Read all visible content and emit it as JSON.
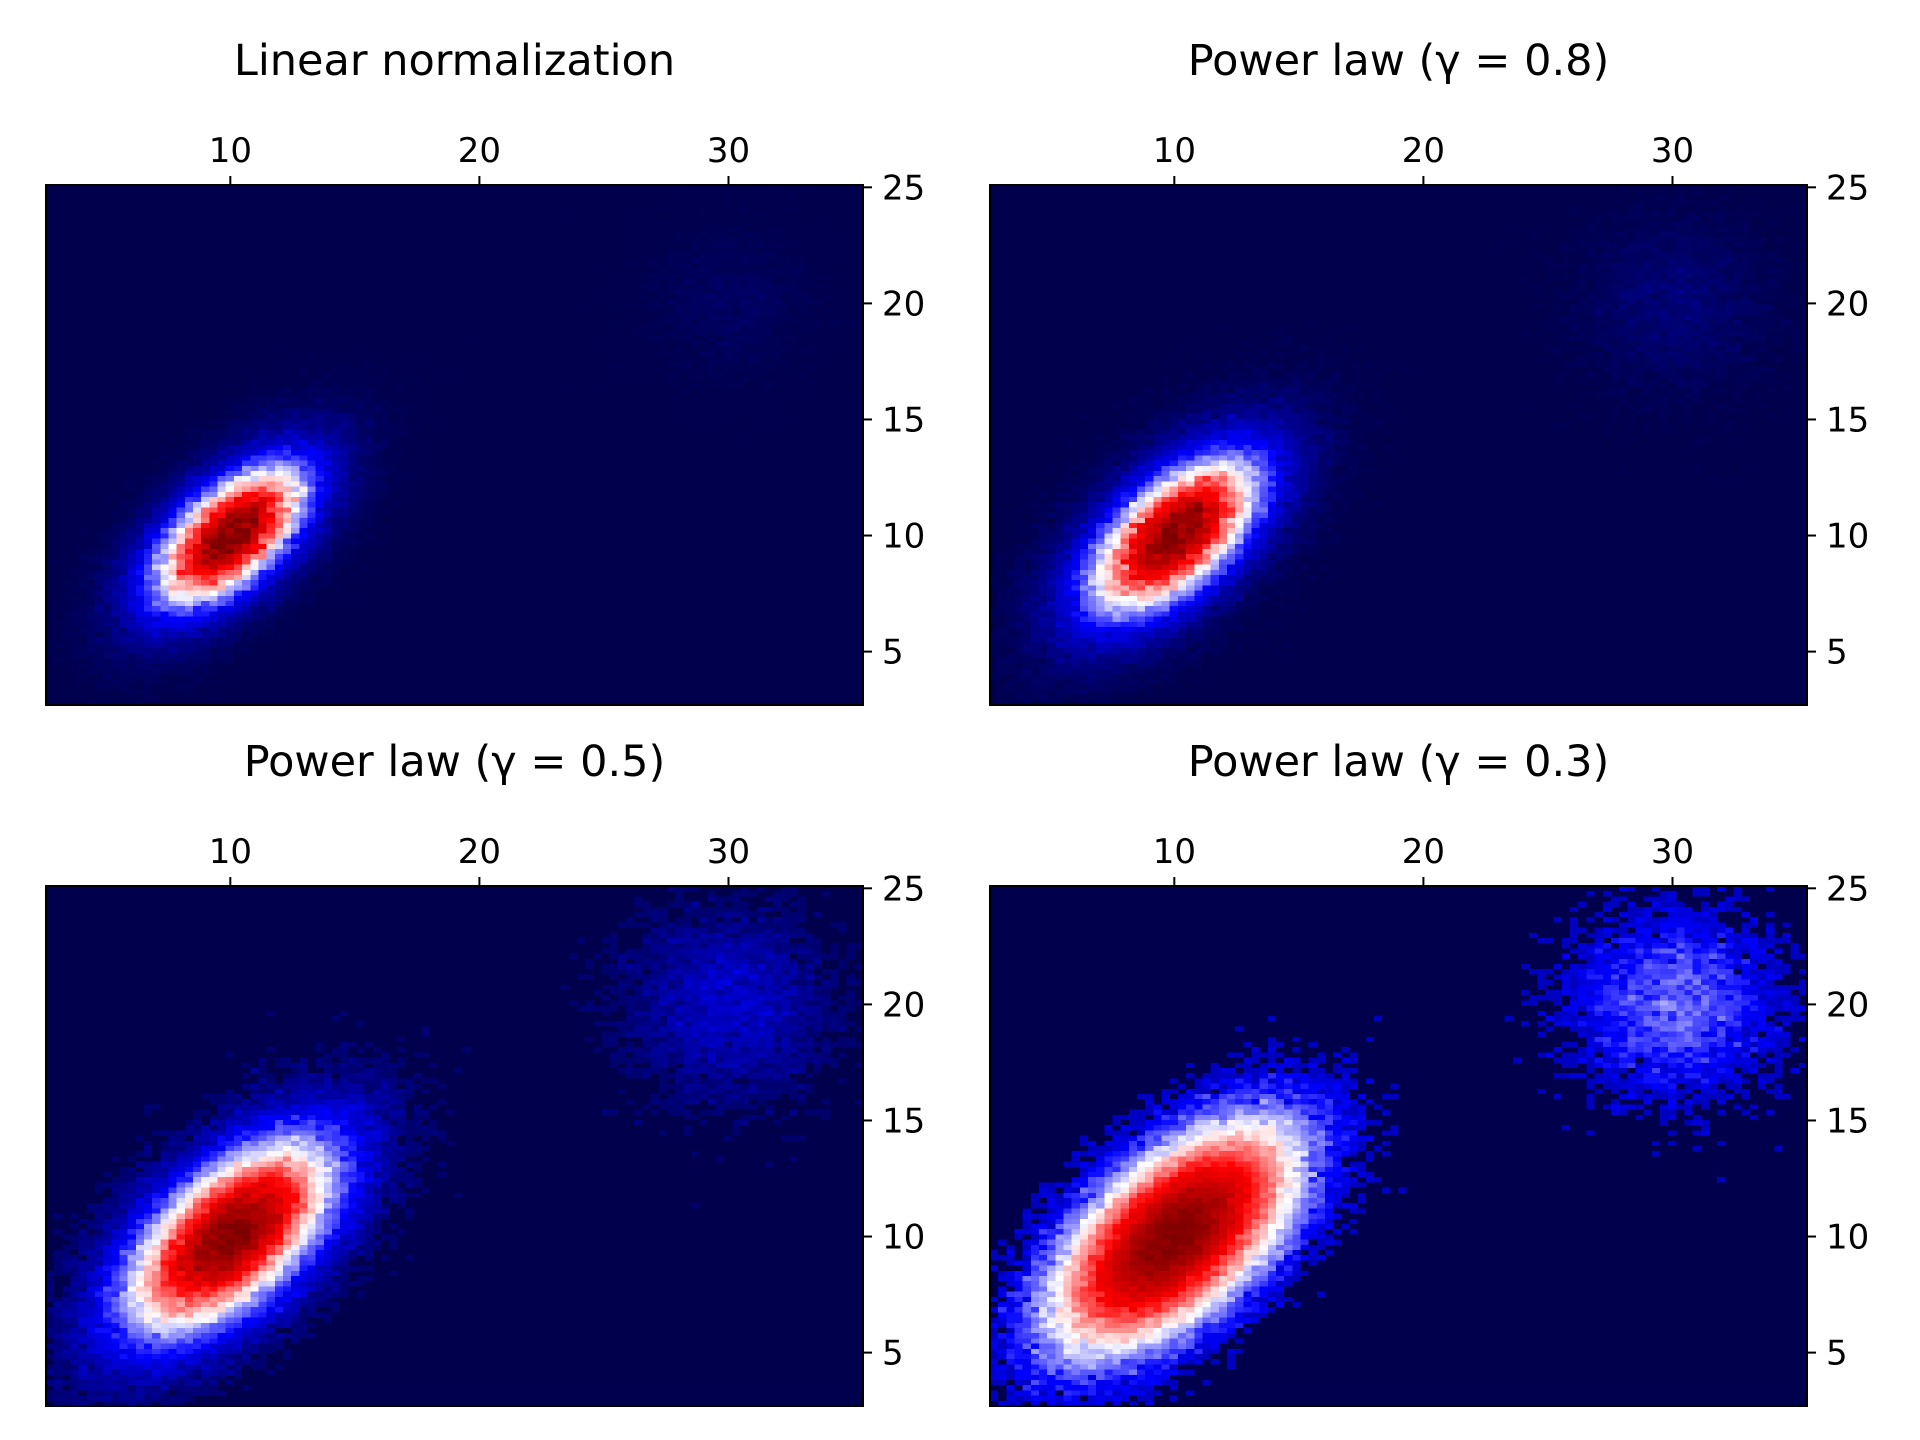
{
  "chart_data": [
    {
      "type": "heatmap",
      "title": "Linear normalization",
      "norm": "linear",
      "gamma": 1.0,
      "colormap": "seismic",
      "xlim": [
        2.6,
        35.4
      ],
      "ylim": [
        2.7,
        25.1
      ],
      "x_ticks": [
        10,
        20,
        30
      ],
      "x_tick_labels": [
        "10",
        "20",
        "30"
      ],
      "x_tick_position": "top",
      "y_ticks": [
        5,
        10,
        15,
        20,
        25
      ],
      "y_tick_labels": [
        "5",
        "10",
        "15",
        "20",
        "25"
      ],
      "y_tick_position": "right",
      "bins": [
        100,
        100
      ],
      "clusters": [
        {
          "center": [
            10,
            10
          ],
          "sigma": [
            2.2,
            2.2
          ],
          "correlation": 0.6,
          "weight": 1.0
        },
        {
          "center": [
            30,
            20
          ],
          "sigma": [
            2.0,
            2.0
          ],
          "correlation": 0.0,
          "weight": 0.03
        }
      ]
    },
    {
      "type": "heatmap",
      "title": "Power law (γ = 0.8)",
      "norm": "power",
      "gamma": 0.8,
      "colormap": "seismic",
      "xlim": [
        2.6,
        35.4
      ],
      "ylim": [
        2.7,
        25.1
      ],
      "x_ticks": [
        10,
        20,
        30
      ],
      "x_tick_labels": [
        "10",
        "20",
        "30"
      ],
      "x_tick_position": "top",
      "y_ticks": [
        5,
        10,
        15,
        20,
        25
      ],
      "y_tick_labels": [
        "5",
        "10",
        "15",
        "20",
        "25"
      ],
      "y_tick_position": "right",
      "bins": [
        100,
        100
      ],
      "clusters": [
        {
          "center": [
            10,
            10
          ],
          "sigma": [
            2.2,
            2.2
          ],
          "correlation": 0.6,
          "weight": 1.0
        },
        {
          "center": [
            30,
            20
          ],
          "sigma": [
            2.0,
            2.0
          ],
          "correlation": 0.0,
          "weight": 0.03
        }
      ]
    },
    {
      "type": "heatmap",
      "title": "Power law (γ = 0.5)",
      "norm": "power",
      "gamma": 0.5,
      "colormap": "seismic",
      "xlim": [
        2.6,
        35.4
      ],
      "ylim": [
        2.7,
        25.1
      ],
      "x_ticks": [
        10,
        20,
        30
      ],
      "x_tick_labels": [
        "10",
        "20",
        "30"
      ],
      "x_tick_position": "top",
      "y_ticks": [
        5,
        10,
        15,
        20,
        25
      ],
      "y_tick_labels": [
        "5",
        "10",
        "15",
        "20",
        "25"
      ],
      "y_tick_position": "right",
      "bins": [
        100,
        100
      ],
      "clusters": [
        {
          "center": [
            10,
            10
          ],
          "sigma": [
            2.2,
            2.2
          ],
          "correlation": 0.6,
          "weight": 1.0
        },
        {
          "center": [
            30,
            20
          ],
          "sigma": [
            2.0,
            2.0
          ],
          "correlation": 0.0,
          "weight": 0.03
        }
      ]
    },
    {
      "type": "heatmap",
      "title": "Power law (γ = 0.3)",
      "norm": "power",
      "gamma": 0.3,
      "colormap": "seismic",
      "xlim": [
        2.6,
        35.4
      ],
      "ylim": [
        2.7,
        25.1
      ],
      "x_ticks": [
        10,
        20,
        30
      ],
      "x_tick_labels": [
        "10",
        "20",
        "30"
      ],
      "x_tick_position": "top",
      "y_ticks": [
        5,
        10,
        15,
        20,
        25
      ],
      "y_tick_labels": [
        "5",
        "10",
        "15",
        "20",
        "25"
      ],
      "y_tick_position": "right",
      "bins": [
        100,
        100
      ],
      "clusters": [
        {
          "center": [
            10,
            10
          ],
          "sigma": [
            2.2,
            2.2
          ],
          "correlation": 0.6,
          "weight": 1.0
        },
        {
          "center": [
            30,
            20
          ],
          "sigma": [
            2.0,
            2.0
          ],
          "correlation": 0.0,
          "weight": 0.03
        }
      ]
    }
  ]
}
